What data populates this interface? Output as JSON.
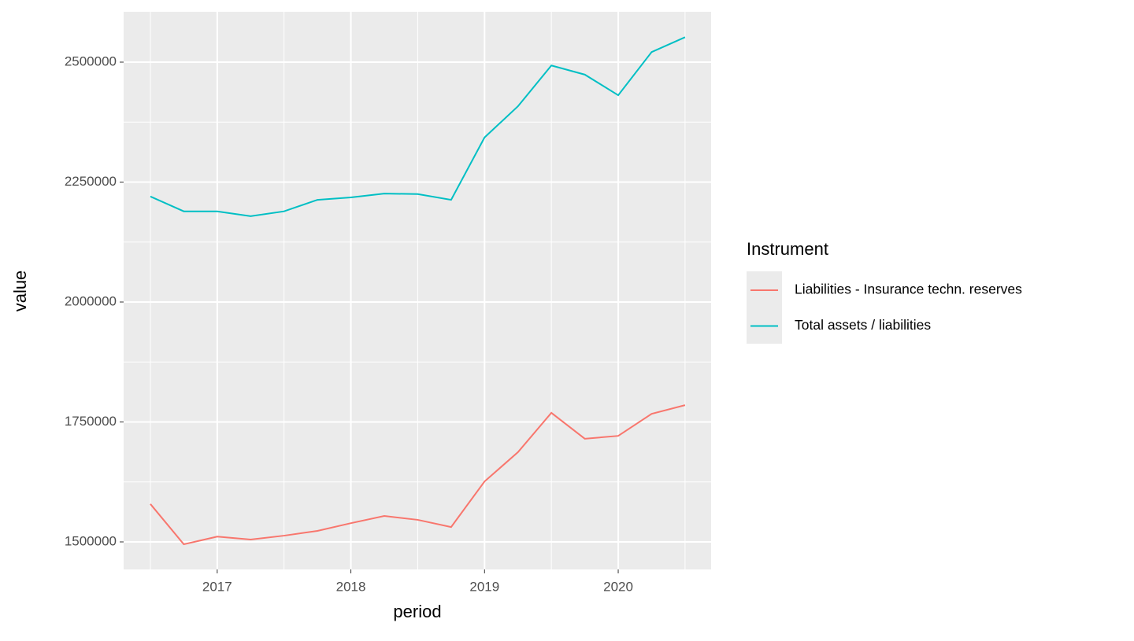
{
  "chart_data": {
    "type": "line",
    "x_label": "period",
    "y_label": "value",
    "x": [
      2016.5,
      2016.75,
      2017,
      2017.25,
      2017.5,
      2017.75,
      2018,
      2018.25,
      2018.5,
      2018.75,
      2019,
      2019.25,
      2019.5,
      2019.75,
      2020,
      2020.25,
      2020.5
    ],
    "series": [
      {
        "name": "Liabilities - Insurance techn. reserves",
        "color": "#F8766D",
        "values": [
          1579000,
          1495000,
          1511000,
          1505000,
          1513000,
          1523000,
          1539000,
          1554000,
          1546000,
          1531000,
          1626000,
          1687000,
          1769000,
          1715000,
          1721000,
          1767000,
          1785000
        ]
      },
      {
        "name": "Total assets / liabilities",
        "color": "#00BFC4",
        "values": [
          2220000,
          2189000,
          2189000,
          2179000,
          2189000,
          2213000,
          2218000,
          2226000,
          2225000,
          2213000,
          2343000,
          2408000,
          2493000,
          2474000,
          2431000,
          2521000,
          2552000
        ]
      }
    ],
    "legend_title": "Instrument",
    "legend_position": "right",
    "xlim": [
      2016.3,
      2020.695
    ],
    "xticks": [
      2017,
      2018,
      2019,
      2020
    ],
    "ylim": [
      1442623,
      2604918
    ],
    "yticks": [
      1500000,
      1750000,
      2000000,
      2250000,
      2500000
    ],
    "grid": true
  }
}
